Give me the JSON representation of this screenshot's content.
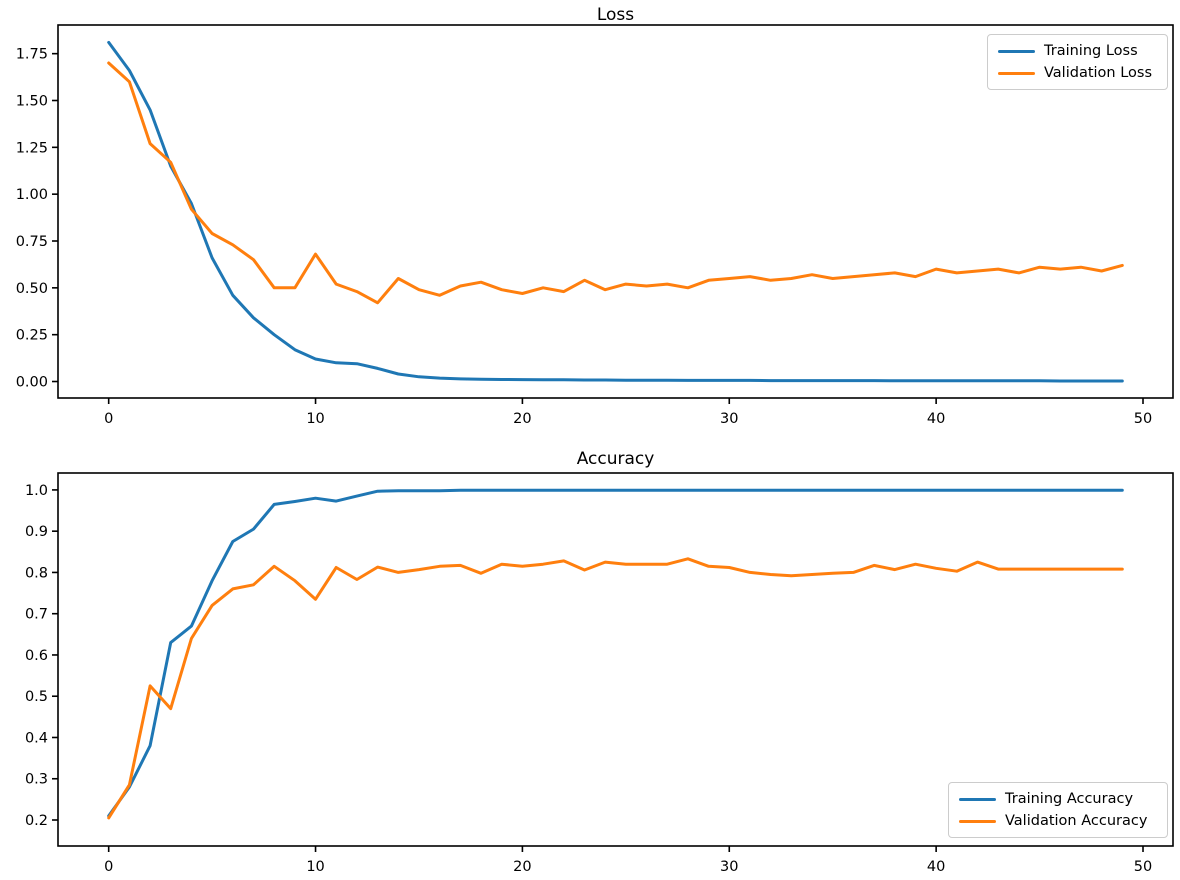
{
  "figure": {
    "background": "#ffffff"
  },
  "colors": {
    "training": "#1f77b4",
    "validation": "#ff7f0e",
    "axis": "#000000",
    "legend_border": "#cccccc"
  },
  "chart_data": [
    {
      "type": "line",
      "title": "Loss",
      "x_start": 0,
      "x_step": 1,
      "xlim": [
        -2.45,
        51.45
      ],
      "ylim": [
        -0.088,
        1.903
      ],
      "grid": false,
      "legend": {
        "loc": "upper-right"
      },
      "xticks": {
        "values": [
          0,
          10,
          20,
          30,
          40,
          50
        ],
        "labels": [
          "0",
          "10",
          "20",
          "30",
          "40",
          "50"
        ]
      },
      "yticks": {
        "values": [
          0.0,
          0.25,
          0.5,
          0.75,
          1.0,
          1.25,
          1.5,
          1.75
        ],
        "labels": [
          "0.00",
          "0.25",
          "0.50",
          "0.75",
          "1.00",
          "1.25",
          "1.50",
          "1.75"
        ]
      },
      "series": [
        {
          "name": "Training Loss",
          "color": "#1f77b4",
          "values": [
            1.81,
            1.66,
            1.45,
            1.15,
            0.95,
            0.66,
            0.46,
            0.34,
            0.25,
            0.17,
            0.12,
            0.1,
            0.095,
            0.07,
            0.04,
            0.025,
            0.018,
            0.014,
            0.012,
            0.011,
            0.01,
            0.009,
            0.009,
            0.008,
            0.008,
            0.007,
            0.007,
            0.007,
            0.006,
            0.006,
            0.006,
            0.006,
            0.005,
            0.005,
            0.005,
            0.005,
            0.005,
            0.005,
            0.004,
            0.004,
            0.004,
            0.004,
            0.004,
            0.004,
            0.004,
            0.004,
            0.003,
            0.003,
            0.003,
            0.003
          ]
        },
        {
          "name": "Validation Loss",
          "color": "#ff7f0e",
          "values": [
            1.7,
            1.6,
            1.27,
            1.17,
            0.92,
            0.79,
            0.73,
            0.65,
            0.5,
            0.5,
            0.68,
            0.52,
            0.48,
            0.42,
            0.55,
            0.49,
            0.46,
            0.51,
            0.53,
            0.49,
            0.47,
            0.5,
            0.48,
            0.54,
            0.49,
            0.52,
            0.51,
            0.52,
            0.5,
            0.54,
            0.55,
            0.56,
            0.54,
            0.55,
            0.57,
            0.55,
            0.56,
            0.57,
            0.58,
            0.56,
            0.6,
            0.58,
            0.59,
            0.6,
            0.58,
            0.61,
            0.6,
            0.61,
            0.59,
            0.62
          ]
        }
      ]
    },
    {
      "type": "line",
      "title": "Accuracy",
      "x_start": 0,
      "x_step": 1,
      "xlim": [
        -2.45,
        51.45
      ],
      "ylim": [
        0.137,
        1.041
      ],
      "grid": false,
      "legend": {
        "loc": "lower-right"
      },
      "xticks": {
        "values": [
          0,
          10,
          20,
          30,
          40,
          50
        ],
        "labels": [
          "0",
          "10",
          "20",
          "30",
          "40",
          "50"
        ]
      },
      "yticks": {
        "values": [
          0.2,
          0.3,
          0.4,
          0.5,
          0.6,
          0.7,
          0.8,
          0.9,
          1.0
        ],
        "labels": [
          "0.2",
          "0.3",
          "0.4",
          "0.5",
          "0.6",
          "0.7",
          "0.8",
          "0.9",
          "1.0"
        ]
      },
      "series": [
        {
          "name": "Training Accuracy",
          "color": "#1f77b4",
          "values": [
            0.21,
            0.28,
            0.38,
            0.63,
            0.67,
            0.78,
            0.875,
            0.905,
            0.965,
            0.972,
            0.98,
            0.973,
            0.985,
            0.997,
            0.998,
            0.998,
            0.998,
            0.999,
            0.999,
            0.999,
            0.999,
            0.999,
            0.999,
            0.999,
            0.999,
            0.999,
            0.999,
            0.999,
            0.999,
            0.999,
            0.999,
            0.999,
            0.999,
            0.999,
            0.999,
            0.999,
            0.999,
            0.999,
            0.999,
            0.999,
            0.999,
            0.999,
            0.999,
            0.999,
            0.999,
            0.999,
            0.999,
            0.999,
            0.999,
            0.999
          ]
        },
        {
          "name": "Validation Accuracy",
          "color": "#ff7f0e",
          "values": [
            0.205,
            0.285,
            0.525,
            0.47,
            0.64,
            0.72,
            0.76,
            0.77,
            0.815,
            0.78,
            0.735,
            0.812,
            0.783,
            0.813,
            0.8,
            0.807,
            0.815,
            0.817,
            0.798,
            0.82,
            0.815,
            0.82,
            0.828,
            0.806,
            0.825,
            0.82,
            0.82,
            0.82,
            0.833,
            0.815,
            0.812,
            0.8,
            0.795,
            0.792,
            0.795,
            0.798,
            0.8,
            0.817,
            0.807,
            0.82,
            0.81,
            0.803,
            0.825,
            0.808,
            0.808,
            0.808,
            0.808,
            0.808,
            0.808,
            0.808
          ]
        }
      ]
    }
  ]
}
